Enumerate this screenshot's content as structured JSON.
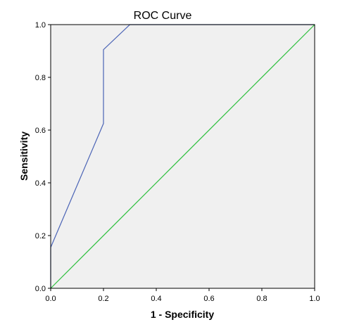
{
  "chart_data": {
    "type": "line",
    "title": "ROC Curve",
    "xlabel": "1 - Specificity",
    "ylabel": "Sensitivity",
    "xlim": [
      0.0,
      1.0
    ],
    "ylim": [
      0.0,
      1.0
    ],
    "x_ticks": [
      "0.0",
      "0.2",
      "0.4",
      "0.6",
      "0.8",
      "1.0"
    ],
    "y_ticks": [
      "0.0",
      "0.2",
      "0.4",
      "0.6",
      "0.8",
      "1.0"
    ],
    "grid": false,
    "legend": "none",
    "series": [
      {
        "x": [
          0.0,
          0.0,
          0.2,
          0.2,
          0.3,
          1.0
        ],
        "y": [
          0.0,
          0.155,
          0.625,
          0.905,
          1.0,
          1.0
        ],
        "color": "#4a63b5"
      },
      {
        "x": [
          0.0,
          1.0
        ],
        "y": [
          0.0,
          1.0
        ],
        "color": "#2bbf3b"
      }
    ],
    "plot_background": "#f0f0f0"
  }
}
